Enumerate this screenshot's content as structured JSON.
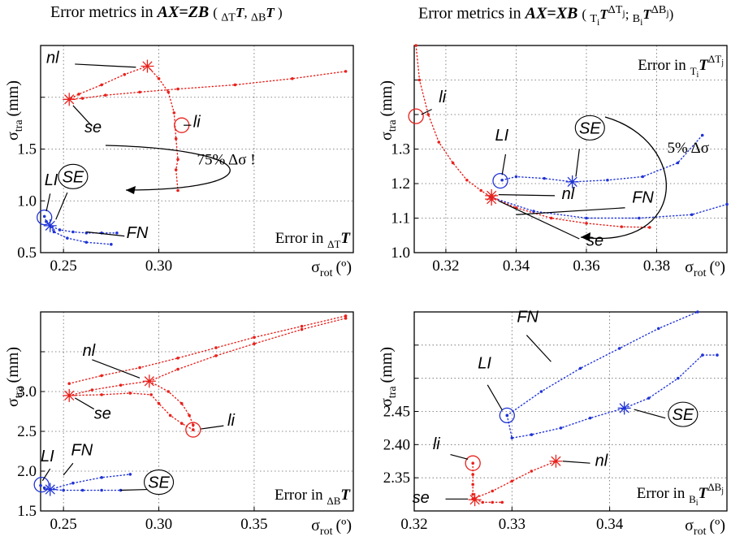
{
  "titles": {
    "left": {
      "lead": "Error metrics in ",
      "eq": "AX=ZB",
      "sub": "(ΔTT, ΔBT)"
    },
    "right": {
      "lead": "Error metrics in ",
      "eq": "AX=XB",
      "sub": "(TiTΔTj; BiTΔBj)"
    }
  },
  "colors": {
    "red": "#e8211c",
    "blue": "#1f33d6"
  },
  "chart_data": [
    {
      "id": "tl",
      "type": "scatter",
      "xlabel": "σrot (º)",
      "ylabel": "σtra (mm)",
      "error_label": "Error in ΔTT",
      "xlim": [
        0.238,
        0.402
      ],
      "ylim": [
        0.5,
        2.5
      ],
      "xticks": [
        {
          "v": 0.25,
          "t": "0.25"
        },
        {
          "v": 0.3,
          "t": "0.30"
        }
      ],
      "yticks": [
        {
          "v": 0.5,
          "t": "0.5"
        },
        {
          "v": 1.0,
          "t": "1.0"
        },
        {
          "v": 1.5,
          "t": "1.5"
        },
        {
          "v": 2.0,
          "t": ""
        }
      ],
      "xgrid": [
        0.25,
        0.3,
        0.35
      ],
      "ygrid": [
        0.5,
        1.0,
        1.5,
        2.0
      ],
      "series": [
        {
          "color": "red",
          "x": [
            0.294,
            0.282,
            0.27,
            0.258,
            0.253,
            0.26,
            0.272,
            0.29,
            0.31,
            0.34,
            0.37,
            0.398
          ],
          "y": [
            2.3,
            2.22,
            2.12,
            2.03,
            1.98,
            1.99,
            2.02,
            2.05,
            2.08,
            2.12,
            2.18,
            2.25
          ]
        },
        {
          "color": "red",
          "x": [
            0.294,
            0.3,
            0.305,
            0.308,
            0.309,
            0.31,
            0.309,
            0.31
          ],
          "y": [
            2.3,
            2.18,
            2.05,
            1.85,
            1.6,
            1.4,
            1.3,
            1.1
          ]
        },
        {
          "color": "blue",
          "x": [
            0.24,
            0.241,
            0.243,
            0.248,
            0.255,
            0.262,
            0.27,
            0.278
          ],
          "y": [
            0.85,
            0.8,
            0.76,
            0.72,
            0.7,
            0.69,
            0.69,
            0.69
          ]
        },
        {
          "color": "blue",
          "x": [
            0.241,
            0.245,
            0.252,
            0.262,
            0.275
          ],
          "y": [
            0.8,
            0.7,
            0.64,
            0.6,
            0.58
          ]
        }
      ],
      "markers": [
        {
          "kind": "star",
          "color": "red",
          "x": 0.294,
          "y": 2.3
        },
        {
          "kind": "star",
          "color": "red",
          "x": 0.253,
          "y": 1.98
        },
        {
          "kind": "circle",
          "color": "red",
          "x": 0.312,
          "y": 1.73
        },
        {
          "kind": "circle",
          "color": "blue",
          "x": 0.24,
          "y": 0.84
        },
        {
          "kind": "star",
          "color": "blue",
          "x": 0.243,
          "y": 0.76
        }
      ],
      "labels": [
        {
          "text": "nl",
          "x": 0.241,
          "y": 2.33,
          "lx": [
            0.256,
            0.288
          ],
          "ly": [
            2.32,
            2.29
          ]
        },
        {
          "text": "se",
          "x": 0.261,
          "y": 1.66,
          "lx": [
            0.265,
            0.255
          ],
          "ly": [
            1.72,
            1.92
          ]
        },
        {
          "text": "li",
          "x": 0.318,
          "y": 1.71,
          "lx": [
            0.317,
            0.313
          ],
          "ly": [
            1.73,
            1.73
          ]
        },
        {
          "text": "LI",
          "x": 0.24,
          "y": 1.15,
          "lx": [
            0.243,
            0.241
          ],
          "ly": [
            1.07,
            0.9
          ]
        },
        {
          "text": "FN",
          "x": 0.283,
          "y": 0.64,
          "lx": [
            0.282,
            0.262
          ],
          "ly": [
            0.66,
            0.7
          ]
        },
        {
          "text": "SE",
          "x": 0.255,
          "y": 1.18,
          "circled": true,
          "lx": [
            0.252,
            0.246
          ],
          "ly": [
            1.08,
            0.82
          ]
        }
      ],
      "note": {
        "text": "75% Δσ !",
        "x": 0.32,
        "y": 1.35
      }
    },
    {
      "id": "tr",
      "type": "scatter",
      "xlabel": "σrot (º)",
      "ylabel": "σtra (mm)",
      "error_label": "Error in TiTΔTj",
      "xlim": [
        0.311,
        0.4
      ],
      "ylim": [
        1.0,
        1.6
      ],
      "xticks": [
        {
          "v": 0.32,
          "t": "0.32"
        },
        {
          "v": 0.34,
          "t": "0.34"
        },
        {
          "v": 0.36,
          "t": "0.36"
        },
        {
          "v": 0.38,
          "t": "0.38"
        }
      ],
      "yticks": [
        {
          "v": 1.0,
          "t": "1.0"
        },
        {
          "v": 1.1,
          "t": "1.1"
        },
        {
          "v": 1.2,
          "t": "1.2"
        },
        {
          "v": 1.3,
          "t": "1.3"
        },
        {
          "v": 1.4,
          "t": ""
        },
        {
          "v": 1.5,
          "t": ""
        }
      ],
      "xgrid": [
        0.32,
        0.34,
        0.36,
        0.38
      ],
      "ygrid": [
        1.1,
        1.2,
        1.3,
        1.4,
        1.5
      ],
      "series": [
        {
          "color": "red",
          "x": [
            0.3115,
            0.3125,
            0.315,
            0.318,
            0.322,
            0.326,
            0.33,
            0.333
          ],
          "y": [
            1.6,
            1.5,
            1.4,
            1.32,
            1.26,
            1.21,
            1.18,
            1.16
          ]
        },
        {
          "color": "red",
          "x": [
            0.333,
            0.34,
            0.35,
            0.36,
            0.37,
            0.378
          ],
          "y": [
            1.16,
            1.13,
            1.1,
            1.085,
            1.075,
            1.073
          ]
        },
        {
          "color": "blue",
          "x": [
            0.336,
            0.34,
            0.348,
            0.356,
            0.366,
            0.376,
            0.386,
            0.393
          ],
          "y": [
            1.21,
            1.22,
            1.215,
            1.205,
            1.21,
            1.22,
            1.26,
            1.34
          ]
        },
        {
          "color": "blue",
          "x": [
            0.333,
            0.345,
            0.36,
            0.375,
            0.39,
            0.4
          ],
          "y": [
            1.16,
            1.12,
            1.1,
            1.1,
            1.11,
            1.14
          ]
        }
      ],
      "markers": [
        {
          "kind": "circle",
          "color": "red",
          "x": 0.3115,
          "y": 1.395
        },
        {
          "kind": "star",
          "color": "red",
          "x": 0.333,
          "y": 1.165
        },
        {
          "kind": "star",
          "color": "red",
          "x": 0.333,
          "y": 1.155
        },
        {
          "kind": "circle",
          "color": "blue",
          "x": 0.3355,
          "y": 1.208
        },
        {
          "kind": "star",
          "color": "blue",
          "x": 0.356,
          "y": 1.205
        }
      ],
      "labels": [
        {
          "text": "li",
          "x": 0.318,
          "y": 1.435,
          "lx": [
            0.316,
            0.313
          ],
          "ly": [
            1.415,
            1.4
          ]
        },
        {
          "text": "LI",
          "x": 0.334,
          "y": 1.325,
          "lx": [
            0.337,
            0.336
          ],
          "ly": [
            1.285,
            1.225
          ]
        },
        {
          "text": "SE",
          "x": 0.361,
          "y": 1.345,
          "circled": true,
          "lx": [
            0.358,
            0.357
          ],
          "ly": [
            1.3,
            1.22
          ]
        },
        {
          "text": "nl",
          "x": 0.353,
          "y": 1.155,
          "lx": [
            0.351,
            0.335
          ],
          "ly": [
            1.165,
            1.168
          ]
        },
        {
          "text": "FN",
          "x": 0.373,
          "y": 1.145,
          "lx": [
            0.371,
            0.34
          ],
          "ly": [
            1.13,
            1.11
          ]
        },
        {
          "text": "se",
          "x": 0.36,
          "y": 1.02,
          "lx": [
            0.358,
            0.335
          ],
          "ly": [
            1.04,
            1.15
          ]
        }
      ],
      "note": {
        "text": "5% Δσ",
        "x": 0.383,
        "y": 1.29
      }
    },
    {
      "id": "bl",
      "type": "scatter",
      "xlabel": "σrot (º)",
      "ylabel": "σtra (mm)",
      "error_label": "Error in ΔBT",
      "xlim": [
        0.238,
        0.402
      ],
      "ylim": [
        1.5,
        4.0
      ],
      "xticks": [
        {
          "v": 0.25,
          "t": "0.25"
        },
        {
          "v": 0.3,
          "t": "0.30"
        },
        {
          "v": 0.35,
          "t": "0.35"
        }
      ],
      "yticks": [
        {
          "v": 1.5,
          "t": "1.5"
        },
        {
          "v": 2.0,
          "t": "2.0"
        },
        {
          "v": 2.5,
          "t": "2.5"
        },
        {
          "v": 3.0,
          "t": "3.0"
        },
        {
          "v": 3.5,
          "t": ""
        }
      ],
      "xgrid": [
        0.25,
        0.3,
        0.35
      ],
      "ygrid": [
        2.0,
        2.5,
        3.0,
        3.5
      ],
      "series": [
        {
          "color": "red",
          "x": [
            0.253,
            0.265,
            0.28,
            0.295,
            0.31,
            0.33,
            0.35,
            0.375,
            0.398
          ],
          "y": [
            2.95,
            3.02,
            3.08,
            3.13,
            3.28,
            3.45,
            3.6,
            3.78,
            3.92
          ]
        },
        {
          "color": "red",
          "x": [
            0.253,
            0.27,
            0.29,
            0.31,
            0.33,
            0.35,
            0.375,
            0.398
          ],
          "y": [
            3.1,
            3.2,
            3.3,
            3.42,
            3.55,
            3.68,
            3.82,
            3.95
          ]
        },
        {
          "color": "red",
          "x": [
            0.253,
            0.27,
            0.285,
            0.296,
            0.3,
            0.306,
            0.312,
            0.318
          ],
          "y": [
            2.95,
            2.96,
            2.98,
            2.96,
            2.85,
            2.7,
            2.6,
            2.52
          ]
        },
        {
          "color": "red",
          "x": [
            0.295,
            0.305,
            0.312,
            0.316,
            0.318,
            0.318
          ],
          "y": [
            3.13,
            3.0,
            2.85,
            2.7,
            2.58,
            2.52
          ]
        },
        {
          "color": "blue",
          "x": [
            0.238,
            0.24,
            0.243,
            0.25,
            0.26,
            0.27,
            0.28
          ],
          "y": [
            1.82,
            1.79,
            1.77,
            1.76,
            1.76,
            1.76,
            1.76
          ]
        },
        {
          "color": "blue",
          "x": [
            0.243,
            0.255,
            0.27,
            0.285
          ],
          "y": [
            1.77,
            1.85,
            1.92,
            1.96
          ]
        }
      ],
      "markers": [
        {
          "kind": "star",
          "color": "red",
          "x": 0.295,
          "y": 3.13
        },
        {
          "kind": "star",
          "color": "red",
          "x": 0.253,
          "y": 2.95
        },
        {
          "kind": "circle",
          "color": "red",
          "x": 0.318,
          "y": 2.52
        },
        {
          "kind": "circle",
          "color": "blue",
          "x": 0.2385,
          "y": 1.83
        },
        {
          "kind": "star",
          "color": "blue",
          "x": 0.243,
          "y": 1.77
        }
      ],
      "labels": [
        {
          "text": "nl",
          "x": 0.26,
          "y": 3.45,
          "lx": [
            0.265,
            0.29
          ],
          "ly": [
            3.4,
            3.17
          ]
        },
        {
          "text": "se",
          "x": 0.266,
          "y": 2.66,
          "lx": [
            0.266,
            0.256
          ],
          "ly": [
            2.78,
            2.92
          ]
        },
        {
          "text": "li",
          "x": 0.336,
          "y": 2.57,
          "lx": [
            0.334,
            0.322
          ],
          "ly": [
            2.57,
            2.53
          ]
        },
        {
          "text": "LI",
          "x": 0.238,
          "y": 2.12,
          "lx": [
            0.243,
            0.239
          ],
          "ly": [
            2.03,
            1.88
          ]
        },
        {
          "text": "FN",
          "x": 0.254,
          "y": 2.2,
          "lx": [
            0.255,
            0.25
          ],
          "ly": [
            2.1,
            1.95
          ]
        },
        {
          "text": "SE",
          "x": 0.3,
          "y": 1.79,
          "circled": true,
          "lx": [
            0.294,
            0.28
          ],
          "ly": [
            1.77,
            1.76
          ]
        }
      ]
    },
    {
      "id": "br",
      "type": "scatter",
      "xlabel": "σrot (º)",
      "ylabel": "σtra (mm)",
      "error_label": "Error in BiTΔBj",
      "xlim": [
        0.32,
        0.352
      ],
      "ylim": [
        2.3,
        2.6
      ],
      "xticks": [
        {
          "v": 0.32,
          "t": "0.32"
        },
        {
          "v": 0.33,
          "t": "0.33"
        },
        {
          "v": 0.34,
          "t": "0.34"
        }
      ],
      "yticks": [
        {
          "v": 2.35,
          "t": "2.35"
        },
        {
          "v": 2.4,
          "t": "2.40"
        },
        {
          "v": 2.45,
          "t": "2.45"
        },
        {
          "v": 2.5,
          "t": ""
        },
        {
          "v": 2.55,
          "t": ""
        }
      ],
      "xgrid": [
        0.33,
        0.34
      ],
      "ygrid": [
        2.35,
        2.4,
        2.45,
        2.5,
        2.55
      ],
      "series": [
        {
          "color": "red",
          "x": [
            0.326,
            0.326,
            0.326,
            0.326,
            0.3262,
            0.327,
            0.328,
            0.329
          ],
          "y": [
            2.372,
            2.355,
            2.34,
            2.325,
            2.318,
            2.313,
            2.313,
            2.313
          ]
        },
        {
          "color": "red",
          "x": [
            0.326,
            0.328,
            0.33,
            0.332,
            0.3345
          ],
          "y": [
            2.318,
            2.33,
            2.345,
            2.36,
            2.375
          ]
        },
        {
          "color": "blue",
          "x": [
            0.3295,
            0.33,
            0.332,
            0.335,
            0.338,
            0.3415,
            0.344,
            0.347,
            0.3495,
            0.351
          ],
          "y": [
            2.444,
            2.41,
            2.415,
            2.425,
            2.44,
            2.455,
            2.47,
            2.5,
            2.535,
            2.535
          ]
        },
        {
          "color": "blue",
          "x": [
            0.3295,
            0.333,
            0.337,
            0.341,
            0.345,
            0.349
          ],
          "y": [
            2.444,
            2.48,
            2.515,
            2.545,
            2.575,
            2.6
          ]
        }
      ],
      "markers": [
        {
          "kind": "circle",
          "color": "red",
          "x": 0.326,
          "y": 2.372
        },
        {
          "kind": "star",
          "color": "red",
          "x": 0.3262,
          "y": 2.317
        },
        {
          "kind": "star",
          "color": "red",
          "x": 0.3345,
          "y": 2.375
        },
        {
          "kind": "circle",
          "color": "blue",
          "x": 0.3295,
          "y": 2.444
        },
        {
          "kind": "star",
          "color": "blue",
          "x": 0.3415,
          "y": 2.455
        }
      ],
      "labels": [
        {
          "text": "FN",
          "x": 0.3305,
          "y": 2.585,
          "lx": [
            0.3315,
            0.334
          ],
          "ly": [
            2.565,
            2.525
          ]
        },
        {
          "text": "LI",
          "x": 0.3265,
          "y": 2.515,
          "lx": [
            0.3275,
            0.329
          ],
          "ly": [
            2.49,
            2.452
          ]
        },
        {
          "text": "li",
          "x": 0.3219,
          "y": 2.393,
          "lx": [
            0.3237,
            0.3255
          ],
          "ly": [
            2.385,
            2.378
          ]
        },
        {
          "text": "se",
          "x": 0.3198,
          "y": 2.312,
          "lx": [
            0.3232,
            0.3255
          ],
          "ly": [
            2.318,
            2.318
          ]
        },
        {
          "text": "nl",
          "x": 0.3385,
          "y": 2.368,
          "lx": [
            0.338,
            0.3352
          ],
          "ly": [
            2.372,
            2.375
          ]
        },
        {
          "text": "SE",
          "x": 0.3475,
          "y": 2.437,
          "circled": true,
          "lx": [
            0.3457,
            0.3425
          ],
          "ly": [
            2.44,
            2.453
          ]
        }
      ]
    }
  ]
}
